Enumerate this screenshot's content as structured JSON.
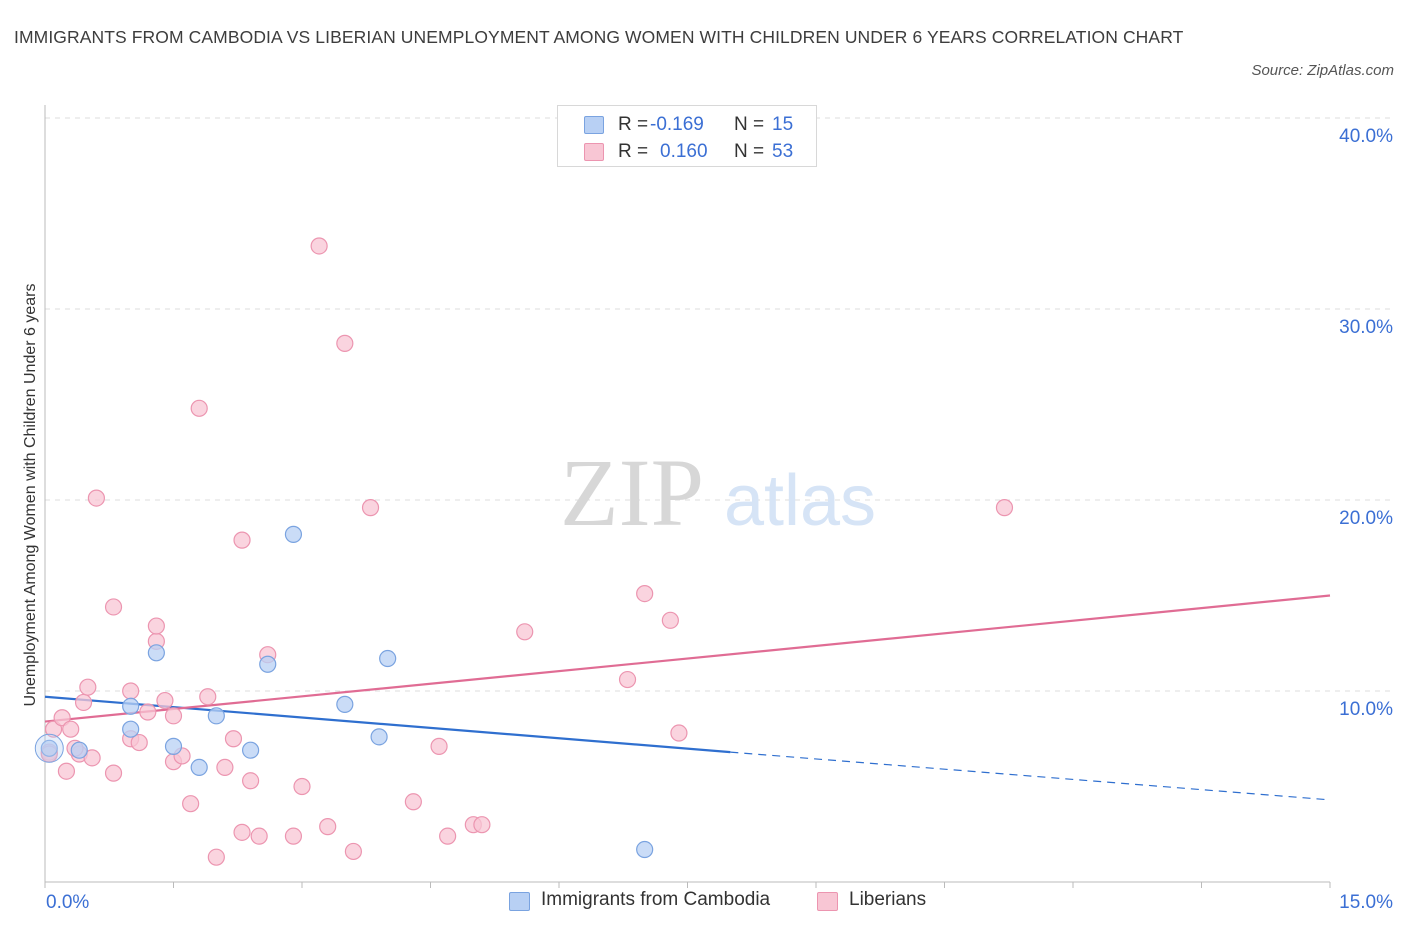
{
  "title": "IMMIGRANTS FROM CAMBODIA VS LIBERIAN UNEMPLOYMENT AMONG WOMEN WITH CHILDREN UNDER 6 YEARS CORRELATION CHART",
  "source": "Source: ZipAtlas.com",
  "watermark": {
    "zip": "ZIP",
    "atlas": "atlas"
  },
  "legend": {
    "rows": [
      {
        "r_label": "R = ",
        "r_value": "-0.169",
        "n_label": "N = ",
        "n_value": "15"
      },
      {
        "r_label": "R = ",
        "r_value": "0.160",
        "n_label": "N = ",
        "n_value": "53"
      }
    ]
  },
  "colors": {
    "cambodia_fill": "#b8d0f4",
    "cambodia_stroke": "#7aa3e0",
    "cambodia_line": "#2f6fcf",
    "liberian_fill": "#f8c6d4",
    "liberian_stroke": "#ec95b0",
    "liberian_line": "#e06c94",
    "axis_label": "#3b6fd4",
    "grid": "#dcdcdc"
  },
  "chart_data": {
    "type": "scatter",
    "xlabel": "",
    "ylabel": "Unemployment Among Women with Children Under 6 years",
    "xlim": [
      0,
      15
    ],
    "ylim": [
      0,
      40
    ],
    "x_tick_labels": [
      "0.0%",
      "15.0%"
    ],
    "y_tick_labels": [
      "10.0%",
      "20.0%",
      "30.0%",
      "40.0%"
    ],
    "grid": true,
    "legend_position": "bottom",
    "series": [
      {
        "name": "Immigrants from Cambodia",
        "points": [
          [
            0.05,
            7.0
          ],
          [
            0.4,
            6.9
          ],
          [
            1.0,
            9.2
          ],
          [
            1.0,
            8.0
          ],
          [
            1.3,
            12.0
          ],
          [
            1.5,
            7.1
          ],
          [
            1.8,
            6.0
          ],
          [
            2.0,
            8.7
          ],
          [
            2.4,
            6.9
          ],
          [
            2.6,
            11.4
          ],
          [
            2.9,
            18.2
          ],
          [
            3.5,
            9.3
          ],
          [
            3.9,
            7.6
          ],
          [
            4.0,
            11.7
          ],
          [
            7.0,
            1.7
          ]
        ],
        "trend": {
          "x": [
            0.0,
            8.0
          ],
          "y": [
            9.7,
            6.8
          ],
          "dashed_extension": {
            "x": [
              8.0,
              15.0
            ],
            "y": [
              6.8,
              4.3
            ]
          }
        }
      },
      {
        "name": "Liberians",
        "points": [
          [
            0.05,
            6.8
          ],
          [
            0.1,
            8.0
          ],
          [
            0.2,
            8.6
          ],
          [
            0.25,
            5.8
          ],
          [
            0.3,
            8.0
          ],
          [
            0.4,
            6.7
          ],
          [
            0.45,
            9.4
          ],
          [
            0.5,
            10.2
          ],
          [
            0.55,
            6.5
          ],
          [
            0.6,
            20.1
          ],
          [
            0.8,
            5.7
          ],
          [
            0.8,
            14.4
          ],
          [
            1.0,
            7.5
          ],
          [
            1.0,
            10.0
          ],
          [
            1.1,
            7.3
          ],
          [
            1.2,
            8.9
          ],
          [
            1.3,
            12.6
          ],
          [
            1.3,
            13.4
          ],
          [
            1.4,
            9.5
          ],
          [
            1.5,
            8.7
          ],
          [
            1.5,
            6.3
          ],
          [
            1.6,
            6.6
          ],
          [
            1.7,
            4.1
          ],
          [
            1.8,
            24.8
          ],
          [
            1.9,
            9.7
          ],
          [
            2.0,
            1.3
          ],
          [
            2.1,
            6.0
          ],
          [
            2.2,
            7.5
          ],
          [
            2.3,
            17.9
          ],
          [
            2.3,
            2.6
          ],
          [
            2.4,
            5.3
          ],
          [
            2.5,
            2.4
          ],
          [
            2.6,
            11.9
          ],
          [
            2.9,
            2.4
          ],
          [
            3.0,
            5.0
          ],
          [
            3.2,
            33.3
          ],
          [
            3.3,
            2.9
          ],
          [
            3.5,
            28.2
          ],
          [
            3.6,
            1.6
          ],
          [
            3.8,
            19.6
          ],
          [
            4.3,
            4.2
          ],
          [
            4.6,
            7.1
          ],
          [
            4.7,
            2.4
          ],
          [
            5.0,
            3.0
          ],
          [
            5.1,
            3.0
          ],
          [
            5.6,
            13.1
          ],
          [
            6.8,
            10.6
          ],
          [
            7.0,
            15.1
          ],
          [
            7.3,
            13.7
          ],
          [
            7.4,
            7.8
          ],
          [
            11.2,
            19.6
          ],
          [
            0.05,
            6.7
          ],
          [
            0.35,
            7.0
          ]
        ],
        "trend": {
          "x": [
            0.0,
            15.0
          ],
          "y": [
            8.4,
            15.0
          ]
        }
      }
    ]
  }
}
